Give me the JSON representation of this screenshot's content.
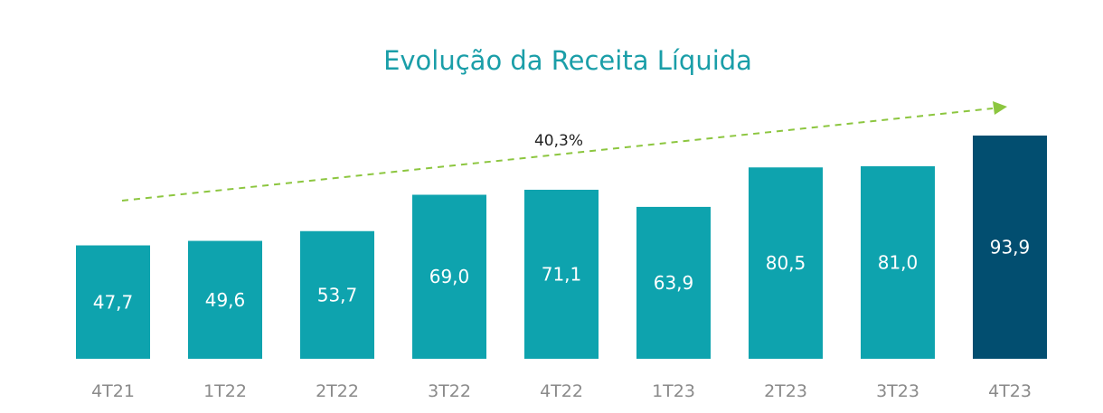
{
  "chart_data": {
    "type": "bar",
    "title": "Evolução da Receita Líquida",
    "xlabel": "",
    "ylabel": "",
    "categories": [
      "4T21",
      "1T22",
      "2T22",
      "3T22",
      "4T22",
      "1T23",
      "2T23",
      "3T23",
      "4T23"
    ],
    "values": [
      47.7,
      49.6,
      53.7,
      69.0,
      71.1,
      63.9,
      80.5,
      81.0,
      93.9
    ],
    "value_labels": [
      "47,7",
      "49,6",
      "53,7",
      "69,0",
      "71,1",
      "63,9",
      "80,5",
      "81,0",
      "93,9"
    ],
    "ylim": [
      0,
      100
    ],
    "grid": false,
    "annotation": {
      "text": "40,3%",
      "type": "growth-arrow",
      "from": "4T21",
      "to": "4T23"
    },
    "colors": {
      "bar": "#0ea3ae",
      "highlight_bar": "#024e70",
      "highlight_index": 8,
      "title": "#1a9ea8",
      "arrow": "#8cc63f",
      "tick": "#8a8a8a"
    }
  }
}
